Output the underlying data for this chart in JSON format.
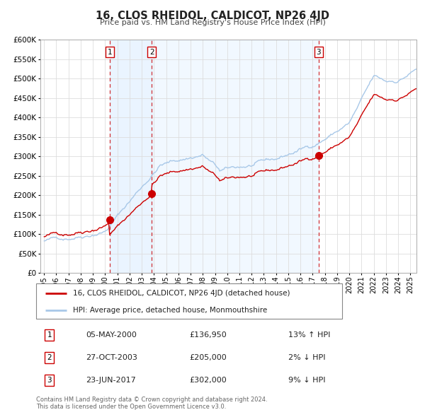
{
  "title": "16, CLOS RHEIDOL, CALDICOT, NP26 4JD",
  "subtitle": "Price paid vs. HM Land Registry's House Price Index (HPI)",
  "hpi_label": "HPI: Average price, detached house, Monmouthshire",
  "property_label": "16, CLOS RHEIDOL, CALDICOT, NP26 4JD (detached house)",
  "hpi_color": "#a8c8e8",
  "property_color": "#cc0000",
  "transactions": [
    {
      "num": 1,
      "date": "05-MAY-2000",
      "year": 2000.37,
      "price": 136950,
      "pct": "13%",
      "dir": "↑"
    },
    {
      "num": 2,
      "date": "27-OCT-2003",
      "year": 2003.82,
      "price": 205000,
      "pct": "2%",
      "dir": "↓"
    },
    {
      "num": 3,
      "date": "23-JUN-2017",
      "year": 2017.48,
      "price": 302000,
      "pct": "9%",
      "dir": "↓"
    }
  ],
  "ylim": [
    0,
    600000
  ],
  "yticks": [
    0,
    50000,
    100000,
    150000,
    200000,
    250000,
    300000,
    350000,
    400000,
    450000,
    500000,
    550000,
    600000
  ],
  "ytick_labels": [
    "£0",
    "£50K",
    "£100K",
    "£150K",
    "£200K",
    "£250K",
    "£300K",
    "£350K",
    "£400K",
    "£450K",
    "£500K",
    "£550K",
    "£600K"
  ],
  "xlim_start": 1994.7,
  "xlim_end": 2025.5,
  "xticks": [
    1995,
    1996,
    1997,
    1998,
    1999,
    2000,
    2001,
    2002,
    2003,
    2004,
    2005,
    2006,
    2007,
    2008,
    2009,
    2010,
    2011,
    2012,
    2013,
    2014,
    2015,
    2016,
    2017,
    2018,
    2019,
    2020,
    2021,
    2022,
    2023,
    2024,
    2025
  ],
  "footer_line1": "Contains HM Land Registry data © Crown copyright and database right 2024.",
  "footer_line2": "This data is licensed under the Open Government Licence v3.0.",
  "background_color": "#ffffff",
  "plot_bg_color": "#ffffff",
  "grid_color": "#dddddd",
  "vline_color": "#cc0000",
  "highlight_color": "#ddeeff"
}
